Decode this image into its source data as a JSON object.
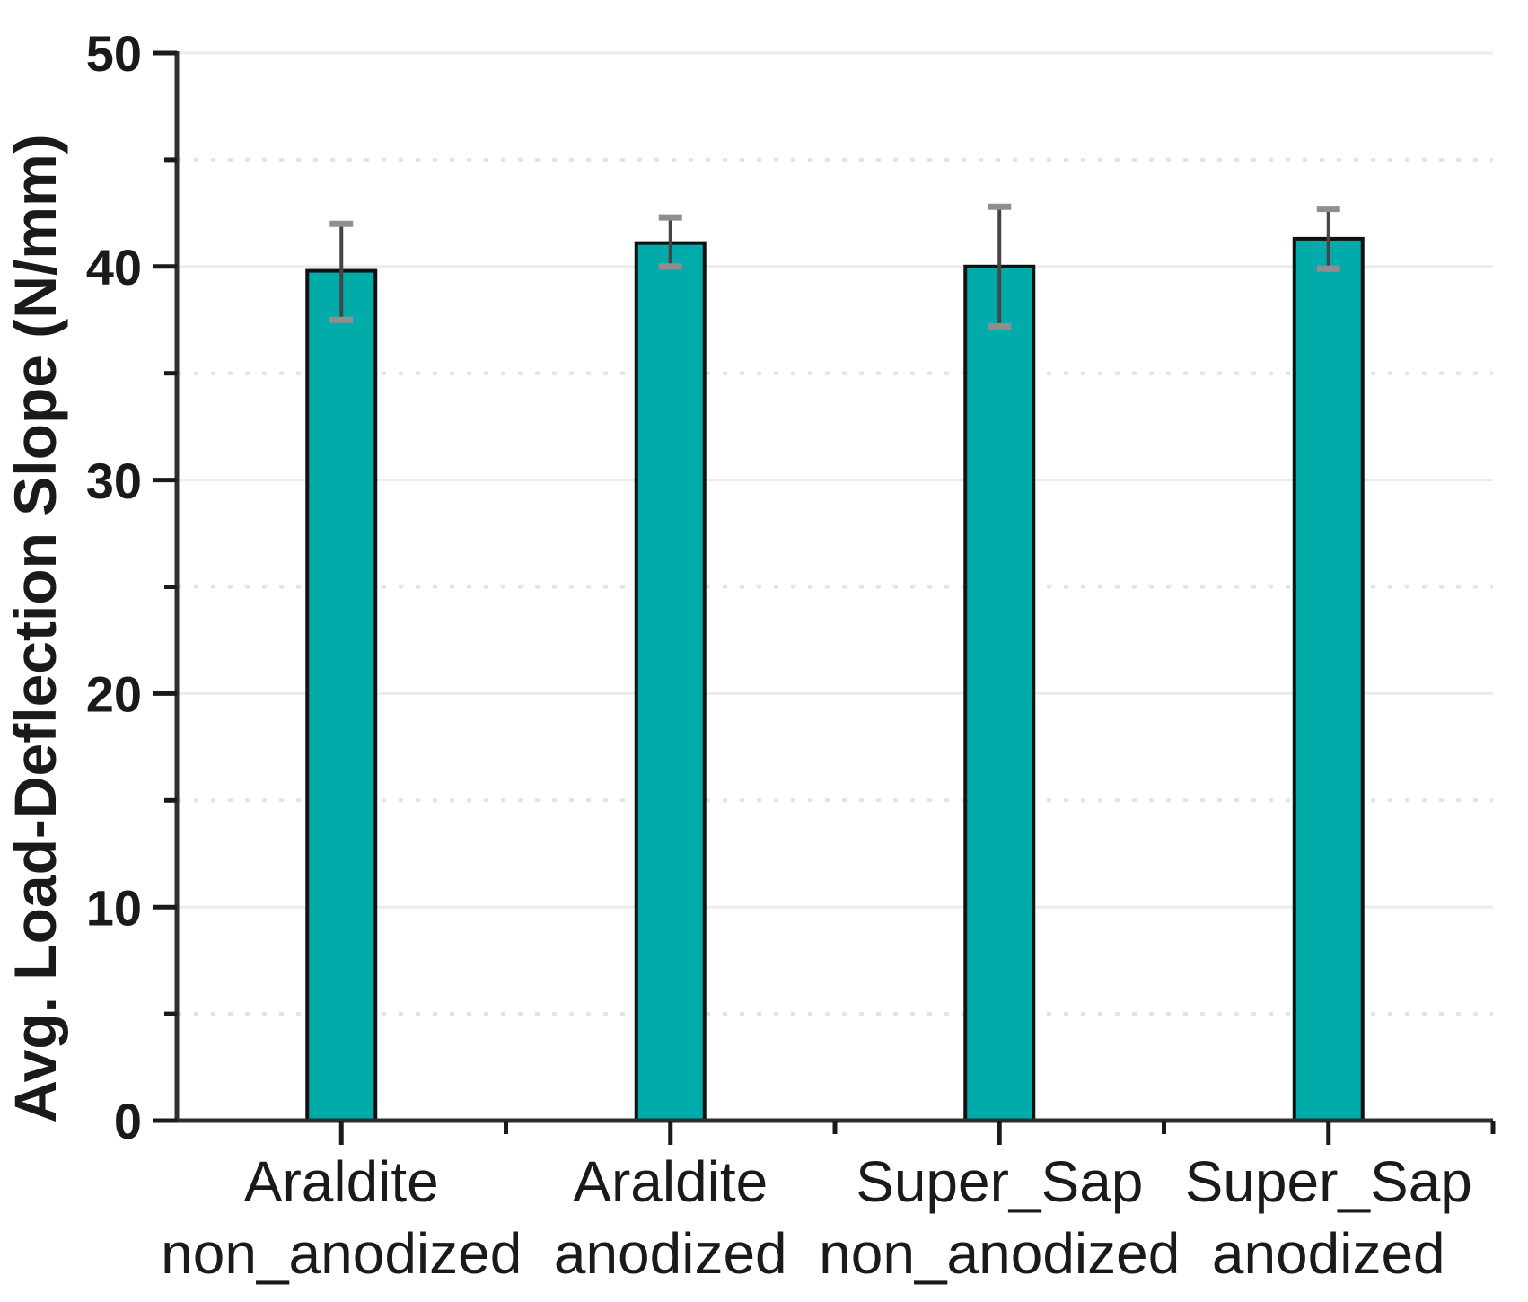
{
  "figure": {
    "background": "#ffffff"
  },
  "chart_data": {
    "type": "bar",
    "title": "",
    "xlabel": "",
    "ylabel": "Avg. Load-Deflection Slope (N/mm)",
    "ylim": [
      0,
      50
    ],
    "y_major_ticks": [
      0,
      10,
      20,
      30,
      40,
      50
    ],
    "y_minor_ticks": [
      5,
      15,
      25,
      35,
      45
    ],
    "grid": {
      "major": "solid",
      "minor": "dotted",
      "vertical": "none"
    },
    "legend": "none",
    "frame": {
      "left_axis": true,
      "bottom_axis": true,
      "top": false,
      "right": false
    },
    "categories": [
      [
        "Araldite",
        "non_anodized"
      ],
      [
        "Araldite",
        "anodized"
      ],
      [
        "Super_Sap",
        "non_anodized"
      ],
      [
        "Super_Sap",
        "anodized"
      ]
    ],
    "values": [
      39.8,
      41.1,
      40.0,
      41.3
    ],
    "error_plus": [
      2.2,
      1.2,
      2.8,
      1.4
    ],
    "error_minus": [
      2.3,
      1.1,
      2.8,
      1.4
    ],
    "colors": {
      "bar_fill": "#00aba9",
      "bar_edge": "#111111",
      "error_line": "#454545",
      "error_cap": "#8f8f8f",
      "axis": "#2e2e2e",
      "tick": "#1a1a1a",
      "grid_major": "#ececec",
      "grid_minor": "#e3e3e3",
      "text": "#1a1a1a"
    }
  }
}
